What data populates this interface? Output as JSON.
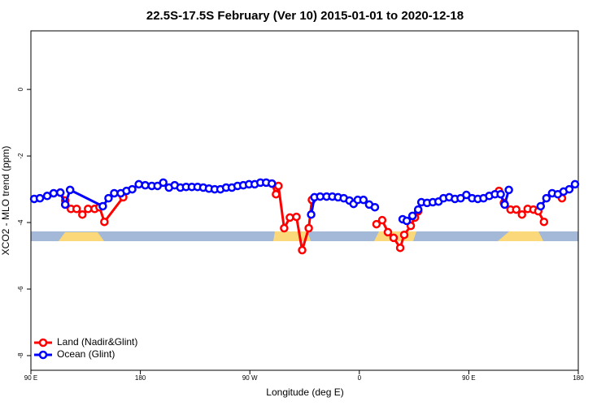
{
  "chart_data": {
    "type": "line",
    "title": "22.5S-17.5S February (Ver 10)   2015-01-01 to 2020-12-18",
    "x_label": "Longitude (deg E)",
    "y_label": "XCO2 - MLO trend (ppm)",
    "xlim": [
      90,
      540
    ],
    "ylim": [
      -8.44,
      1.76
    ],
    "xticks": [
      {
        "value": 90,
        "label": "90 E"
      },
      180,
      {
        "value": 270,
        "label": "90 W"
      },
      {
        "value": 360,
        "label": "0"
      },
      {
        "value": 450,
        "label": "90 E"
      },
      {
        "value": 540,
        "label": "180"
      }
    ],
    "yticks": [
      -8,
      -6,
      -4,
      -2,
      0
    ],
    "legend": "bottom-left",
    "series": [
      {
        "name": "Land (Nadir&Glint)",
        "color": "#ff0000",
        "x": [
          114.2,
          118.2,
          122.9,
          127.6,
          132.3,
          137.0,
          142.4,
          146.4,
          150.4,
          165.9,
          220,
          288.1,
          291.5,
          293.5,
          298.2,
          302.9,
          308.3,
          313.0,
          318.4,
          321.0,
          350,
          374.1,
          378.8,
          383.5,
          388.2,
          393.6,
          396.9,
          402.3,
          405.7,
          408.4,
          440,
          474.8,
          478.9,
          484.3,
          489.0,
          493.7,
          498.4,
          503.1,
          507.1,
          511.8,
          520,
          526.6
        ],
        "values": [
          -3.1,
          -3.34,
          -3.59,
          -3.59,
          -3.76,
          -3.59,
          -3.59,
          -3.54,
          -3.98,
          -3.24,
          null,
          -2.83,
          -3.15,
          -2.9,
          -4.17,
          -3.85,
          -3.83,
          -4.83,
          -4.17,
          -3.32,
          null,
          -4.05,
          -3.93,
          -4.29,
          -4.46,
          -4.76,
          -4.37,
          -4.1,
          -3.85,
          -3.66,
          null,
          -3.05,
          -3.41,
          -3.61,
          -3.61,
          -3.76,
          -3.59,
          -3.61,
          -3.66,
          -3.98,
          null,
          -3.27
        ]
      },
      {
        "name": "Ocean (Glint)",
        "color": "#0000ff",
        "x": [
          92.7,
          97.4,
          103.4,
          108.7,
          114.2,
          118.2,
          122.2,
          149.1,
          153.8,
          158.5,
          163.9,
          168.6,
          173.3,
          178.7,
          184.0,
          189.4,
          194.1,
          198.8,
          203.5,
          208.2,
          212.9,
          217.6,
          222.3,
          227.0,
          231.7,
          236.4,
          241.1,
          245.8,
          250.5,
          255.2,
          259.9,
          264.6,
          269.3,
          274.0,
          278.7,
          283.4,
          288.1,
          300,
          320.4,
          323.1,
          327.8,
          333.1,
          337.8,
          342.5,
          347.2,
          351.9,
          355.3,
          358.7,
          363.4,
          368.1,
          372.8,
          385,
          395.6,
          399.0,
          403.7,
          408.4,
          411.0,
          415.7,
          420.4,
          425.1,
          429.2,
          433.9,
          438.6,
          443.3,
          448.0,
          452.7,
          457.4,
          462.1,
          466.8,
          471.5,
          476.2,
          479.5,
          482.9,
          495,
          509.1,
          513.8,
          518.5,
          523.2,
          527.9,
          532.6,
          537.3
        ],
        "values": [
          -3.29,
          -3.27,
          -3.2,
          -3.12,
          -3.1,
          -3.46,
          -3.02,
          -3.51,
          -3.27,
          -3.12,
          -3.12,
          -3.05,
          -3.0,
          -2.85,
          -2.88,
          -2.9,
          -2.9,
          -2.8,
          -2.95,
          -2.88,
          -2.95,
          -2.93,
          -2.93,
          -2.93,
          -2.95,
          -2.98,
          -3.0,
          -3.0,
          -2.95,
          -2.95,
          -2.9,
          -2.88,
          -2.85,
          -2.85,
          -2.8,
          -2.8,
          -2.83,
          null,
          -3.76,
          -3.24,
          -3.22,
          -3.22,
          -3.22,
          -3.24,
          -3.27,
          -3.34,
          -3.44,
          -3.32,
          -3.32,
          -3.46,
          -3.54,
          null,
          -3.9,
          -3.95,
          -3.8,
          -3.61,
          -3.39,
          -3.41,
          -3.39,
          -3.37,
          -3.27,
          -3.24,
          -3.29,
          -3.27,
          -3.17,
          -3.27,
          -3.29,
          -3.27,
          -3.2,
          -3.15,
          -3.15,
          -3.46,
          -3.02,
          null,
          -3.51,
          -3.27,
          -3.12,
          -3.15,
          -3.07,
          -3.0,
          -2.85
        ]
      }
    ]
  }
}
